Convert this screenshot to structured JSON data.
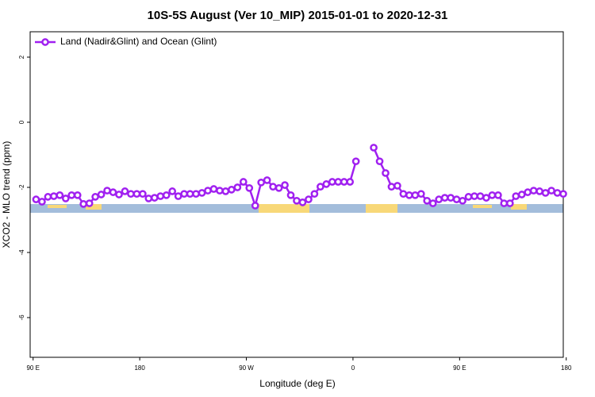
{
  "chart_data": {
    "type": "line",
    "title": "10S-5S August (Ver 10_MIP)   2015-01-01 to 2020-12-31",
    "xlabel": "Longitude (deg E)",
    "ylabel": "XCO2 - MLO trend (ppm)",
    "xlim": [
      87.5,
      537.5
    ],
    "ylim": [
      -7.22,
      2.78
    ],
    "xticks": [
      {
        "value": 90,
        "label": "90 E"
      },
      180,
      {
        "value": 270,
        "label": "90 W"
      },
      {
        "value": 360,
        "label": "0"
      },
      {
        "value": 450,
        "label": "90 E"
      },
      {
        "value": 540,
        "label": "180"
      }
    ],
    "yticks": [
      2,
      0,
      -2,
      -4,
      -6
    ],
    "legend": "top-left",
    "x": [
      92.5,
      97.5,
      102.5,
      107.5,
      112.5,
      117.5,
      122.5,
      127.5,
      132.5,
      137.5,
      142.5,
      147.5,
      152.5,
      157.5,
      162.5,
      167.5,
      172.5,
      177.5,
      182.5,
      187.5,
      192.5,
      197.5,
      202.5,
      207.5,
      212.5,
      217.5,
      222.5,
      227.5,
      232.5,
      237.5,
      242.5,
      247.5,
      252.5,
      257.5,
      262.5,
      267.5,
      272.5,
      277.5,
      282.5,
      287.5,
      292.5,
      297.5,
      302.5,
      307.5,
      312.5,
      317.5,
      322.5,
      327.5,
      332.5,
      337.5,
      342.5,
      347.5,
      352.5,
      357.5,
      362.5,
      367.5,
      372.5,
      377.5,
      382.5,
      387.5,
      392.5,
      397.5,
      402.5,
      407.5,
      412.5,
      417.5,
      422.5,
      427.5,
      432.5,
      437.5,
      442.5,
      447.5,
      452.5,
      457.5,
      462.5,
      467.5,
      472.5,
      477.5,
      482.5,
      487.5,
      492.5,
      497.5,
      502.5,
      507.5,
      512.5,
      517.5,
      522.5,
      527.5,
      532.5,
      537.5
    ],
    "series": [
      {
        "name": "Land (Nadir&Glint) and Ocean (Glint)",
        "color": "#a020f0",
        "values": [
          -2.37,
          -2.44,
          -2.29,
          -2.27,
          -2.24,
          -2.34,
          -2.24,
          -2.24,
          -2.51,
          -2.49,
          -2.29,
          -2.22,
          -2.1,
          -2.15,
          -2.22,
          -2.12,
          -2.2,
          -2.2,
          -2.2,
          -2.34,
          -2.32,
          -2.27,
          -2.24,
          -2.12,
          -2.27,
          -2.2,
          -2.2,
          -2.2,
          -2.17,
          -2.1,
          -2.05,
          -2.1,
          -2.12,
          -2.07,
          -2.0,
          -1.83,
          -2.02,
          -2.56,
          -1.85,
          -1.78,
          -1.98,
          -2.02,
          -1.93,
          -2.24,
          -2.41,
          -2.46,
          -2.37,
          -2.2,
          -1.98,
          -1.9,
          -1.83,
          -1.83,
          -1.83,
          -1.83,
          -1.2,
          null,
          null,
          -0.78,
          -1.2,
          -1.56,
          -1.98,
          -1.95,
          -2.2,
          -2.24,
          -2.24,
          -2.2,
          -2.41,
          -2.49,
          -2.37,
          -2.32,
          -2.32,
          -2.37,
          -2.41,
          -2.29,
          -2.27,
          -2.27,
          -2.32,
          -2.24,
          -2.24,
          -2.49,
          -2.49,
          -2.27,
          -2.22,
          -2.15,
          -2.1,
          -2.12,
          -2.17,
          -2.1,
          -2.17,
          -2.2
        ]
      }
    ]
  }
}
